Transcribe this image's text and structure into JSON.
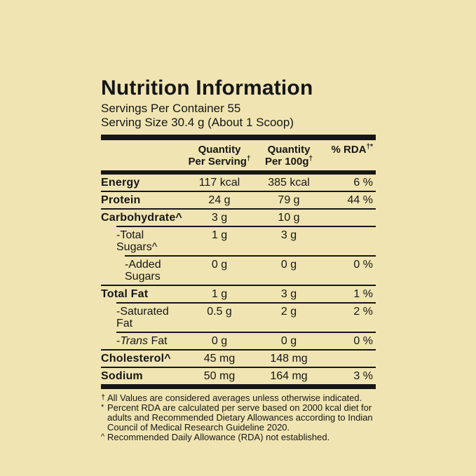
{
  "label": {
    "title": "Nutrition Information",
    "servings_per_container": "Servings Per Container 55",
    "serving_size": "Serving Size 30.4 g (About 1 Scoop)",
    "header": {
      "col_serving_line1": "Quantity",
      "col_serving_line2": "Per Serving",
      "col_serving_sup": "†",
      "col_100g_line1": "Quantity",
      "col_100g_line2": "Per 100g",
      "col_100g_sup": "†",
      "col_rda": "% RDA",
      "col_rda_sup": "†*"
    },
    "rows": [
      {
        "label": "Energy",
        "per_serving": "117 kcal",
        "per_100g": "385 kcal",
        "rda": "6 %"
      },
      {
        "label": "Protein",
        "per_serving": "24 g",
        "per_100g": "79 g",
        "rda": "44 %"
      },
      {
        "label": "Carbohydrate^",
        "per_serving": "3 g",
        "per_100g": "10 g",
        "rda": ""
      },
      {
        "label": "-Total Sugars^",
        "per_serving": "1 g",
        "per_100g": "3 g",
        "rda": ""
      },
      {
        "label": "-Added Sugars",
        "per_serving": "0 g",
        "per_100g": "0 g",
        "rda": "0 %"
      },
      {
        "label": "Total Fat",
        "per_serving": "1 g",
        "per_100g": "3 g",
        "rda": "1 %"
      },
      {
        "label": "-Saturated Fat",
        "per_serving": "0.5 g",
        "per_100g": "2 g",
        "rda": "2 %"
      },
      {
        "label_prefix": "-",
        "label_italic": "Trans",
        "label_rest": " Fat",
        "per_serving": "0 g",
        "per_100g": "0 g",
        "rda": "0 %"
      },
      {
        "label": "Cholesterol^",
        "per_serving": "45 mg",
        "per_100g": "148 mg",
        "rda": ""
      },
      {
        "label": "Sodium",
        "per_serving": "50 mg",
        "per_100g": "164 mg",
        "rda": "3 %"
      }
    ],
    "footnotes": [
      {
        "marker": "†",
        "text": "All Values are considered averages unless otherwise indicated."
      },
      {
        "marker": "*",
        "text": "Percent RDA are calculated per serve based on 2000 kcal diet for adults and Recommended Dietary Allowances according to Indian Council of Medical Research Guideline 2020."
      },
      {
        "marker": "^",
        "text": "Recommended Daily Allowance (RDA) not established."
      }
    ]
  },
  "colors": {
    "background": "#f0e5b2",
    "text": "#161616",
    "bar": "#161616"
  }
}
